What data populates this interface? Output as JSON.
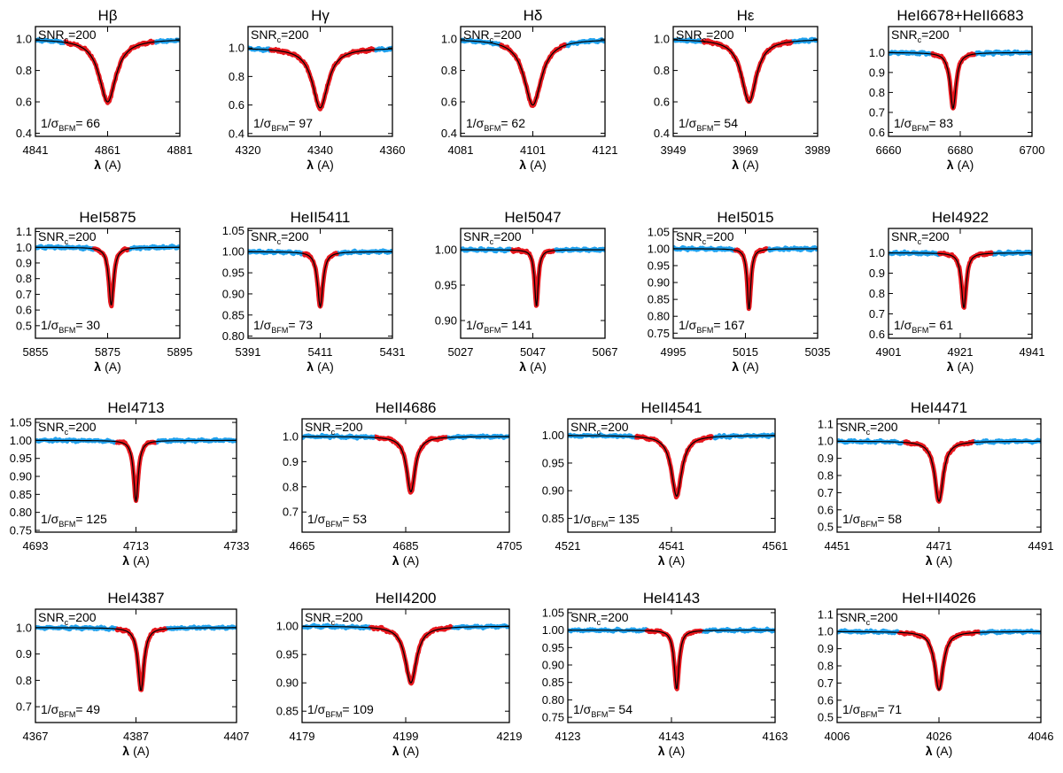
{
  "figure": {
    "snr_label": "SNR",
    "snr_sub": "c",
    "snr_value": "=200",
    "sigma_prefix": "1/σ",
    "sigma_sub": "BFM",
    "xlabel_lambda": "λ",
    "xlabel_unit": "(A)"
  },
  "colors": {
    "observed": "#1fa1ee",
    "fit_region": "#e8161c",
    "model": "#000000",
    "frame": "#000000"
  },
  "chart_data": [
    {
      "type": "line",
      "title": "Hβ",
      "center": 4861,
      "xlim": [
        4841,
        4881
      ],
      "xticks": [
        "4841",
        "4861",
        "4881"
      ],
      "ylim": [
        0.38,
        1.08
      ],
      "yticks": [
        0.4,
        0.6,
        0.8,
        1.0
      ],
      "ytick_labels": [
        "0.4",
        "0.6",
        "0.8",
        "1.0"
      ],
      "depth": 0.4,
      "width": 2.8,
      "inv_sigma_bfm": "66",
      "fit_range": [
        4849,
        4874
      ],
      "series": [
        {
          "name": "observed spectrum"
        },
        {
          "name": "fitted region"
        },
        {
          "name": "model"
        }
      ]
    },
    {
      "type": "line",
      "title": "Hγ",
      "center": 4340,
      "xlim": [
        4320,
        4360
      ],
      "xticks": [
        "4320",
        "4340",
        "4360"
      ],
      "ylim": [
        0.38,
        1.15
      ],
      "yticks": [
        0.4,
        0.6,
        0.8,
        1.0
      ],
      "ytick_labels": [
        "0.4",
        "0.6",
        "0.8",
        "1.0"
      ],
      "depth": 0.42,
      "width": 2.6,
      "inv_sigma_bfm": "97",
      "fit_range": [
        4326,
        4355
      ],
      "series": [
        {
          "name": "observed spectrum"
        },
        {
          "name": "fitted region"
        },
        {
          "name": "model"
        }
      ]
    },
    {
      "type": "line",
      "title": "Hδ",
      "center": 4101,
      "xlim": [
        4081,
        4121
      ],
      "xticks": [
        "4081",
        "4101",
        "4121"
      ],
      "ylim": [
        0.38,
        1.08
      ],
      "yticks": [
        0.4,
        0.6,
        0.8,
        1.0
      ],
      "ytick_labels": [
        "0.4",
        "0.6",
        "0.8",
        "1.0"
      ],
      "depth": 0.42,
      "width": 2.9,
      "inv_sigma_bfm": "62",
      "fit_range": [
        4092,
        4110
      ],
      "series": [
        {
          "name": "observed spectrum"
        },
        {
          "name": "fitted region"
        },
        {
          "name": "model"
        }
      ]
    },
    {
      "type": "line",
      "title": "Hε",
      "center": 3970,
      "xlim": [
        3949,
        3989
      ],
      "xticks": [
        "3949",
        "3969",
        "3989"
      ],
      "ylim": [
        0.38,
        1.08
      ],
      "yticks": [
        0.4,
        0.6,
        0.8,
        1.0
      ],
      "ytick_labels": [
        "0.4",
        "0.6",
        "0.8",
        "1.0"
      ],
      "depth": 0.4,
      "width": 2.5,
      "inv_sigma_bfm": "54",
      "fit_range": [
        3957,
        3982
      ],
      "series": [
        {
          "name": "observed spectrum"
        },
        {
          "name": "fitted region"
        },
        {
          "name": "model"
        }
      ]
    },
    {
      "type": "line",
      "title": "HeI6678+HeII6683",
      "center": 6678,
      "xlim": [
        6660,
        6700
      ],
      "xticks": [
        "6660",
        "6680",
        "6700"
      ],
      "ylim": [
        0.58,
        1.13
      ],
      "yticks": [
        0.6,
        0.7,
        0.8,
        0.9,
        1.0
      ],
      "ytick_labels": [
        "0.6",
        "0.7",
        "0.8",
        "0.9",
        "1.0"
      ],
      "depth": 0.28,
      "width": 1.0,
      "inv_sigma_bfm": "83",
      "fit_range": [
        6672,
        6684
      ],
      "series": [
        {
          "name": "observed spectrum"
        },
        {
          "name": "fitted region"
        },
        {
          "name": "model"
        }
      ]
    },
    {
      "type": "line",
      "title": "HeI5875",
      "center": 5876,
      "xlim": [
        5855,
        5895
      ],
      "xticks": [
        "5855",
        "5875",
        "5895"
      ],
      "ylim": [
        0.42,
        1.12
      ],
      "yticks": [
        0.5,
        0.6,
        0.7,
        0.8,
        0.9,
        1.0,
        1.1
      ],
      "ytick_labels": [
        "0.5",
        "0.6",
        "0.7",
        "0.8",
        "0.9",
        "1.0",
        "1.1"
      ],
      "depth": 0.37,
      "width": 0.8,
      "inv_sigma_bfm": "30",
      "fit_range": [
        5871,
        5881
      ],
      "series": [
        {
          "name": "observed spectrum"
        },
        {
          "name": "fitted region"
        },
        {
          "name": "model"
        }
      ]
    },
    {
      "type": "line",
      "title": "HeII5411",
      "center": 5411,
      "xlim": [
        5391,
        5431
      ],
      "xticks": [
        "5391",
        "5411",
        "5431"
      ],
      "ylim": [
        0.795,
        1.055
      ],
      "yticks": [
        0.8,
        0.85,
        0.9,
        0.95,
        1.0,
        1.05
      ],
      "ytick_labels": [
        "0.80",
        "0.85",
        "0.90",
        "0.95",
        "1.00",
        "1.05"
      ],
      "depth": 0.13,
      "width": 0.9,
      "inv_sigma_bfm": "73",
      "fit_range": [
        5406,
        5416
      ],
      "series": [
        {
          "name": "observed spectrum"
        },
        {
          "name": "fitted region"
        },
        {
          "name": "model"
        }
      ]
    },
    {
      "type": "line",
      "title": "HeI5047",
      "center": 5048,
      "xlim": [
        5027,
        5067
      ],
      "xticks": [
        "5027",
        "5047",
        "5067"
      ],
      "ylim": [
        0.875,
        1.03
      ],
      "yticks": [
        0.9,
        0.95,
        1.0
      ],
      "ytick_labels": [
        "0.90",
        "0.95",
        "1.00"
      ],
      "depth": 0.08,
      "width": 0.6,
      "inv_sigma_bfm": "141",
      "fit_range": [
        5041,
        5053
      ],
      "series": [
        {
          "name": "observed spectrum"
        },
        {
          "name": "fitted region"
        },
        {
          "name": "model"
        }
      ]
    },
    {
      "type": "line",
      "title": "HeI5015",
      "center": 5016,
      "xlim": [
        4995,
        5035
      ],
      "xticks": [
        "4995",
        "5015",
        "5035"
      ],
      "ylim": [
        0.735,
        1.06
      ],
      "yticks": [
        0.75,
        0.8,
        0.85,
        0.9,
        0.95,
        1.0,
        1.05
      ],
      "ytick_labels": [
        "0.75",
        "0.80",
        "0.85",
        "0.90",
        "0.95",
        "1.00",
        "1.05"
      ],
      "depth": 0.18,
      "width": 0.6,
      "inv_sigma_bfm": "167",
      "fit_range": [
        5012,
        5021
      ],
      "series": [
        {
          "name": "observed spectrum"
        },
        {
          "name": "fitted region"
        },
        {
          "name": "model"
        }
      ]
    },
    {
      "type": "line",
      "title": "HeI4922",
      "center": 4922,
      "xlim": [
        4901,
        4941
      ],
      "xticks": [
        "4901",
        "4921",
        "4941"
      ],
      "ylim": [
        0.58,
        1.12
      ],
      "yticks": [
        0.6,
        0.7,
        0.8,
        0.9,
        1.0
      ],
      "ytick_labels": [
        "0.6",
        "0.7",
        "0.8",
        "0.9",
        "1.0"
      ],
      "depth": 0.27,
      "width": 0.8,
      "inv_sigma_bfm": "61",
      "fit_range": [
        4915,
        4930
      ],
      "series": [
        {
          "name": "observed spectrum"
        },
        {
          "name": "fitted region"
        },
        {
          "name": "model"
        }
      ]
    },
    {
      "type": "line",
      "title": "HeI4713",
      "center": 4713,
      "xlim": [
        4693,
        4733
      ],
      "xticks": [
        "4693",
        "4713",
        "4733"
      ],
      "ylim": [
        0.745,
        1.06
      ],
      "yticks": [
        0.75,
        0.8,
        0.85,
        0.9,
        0.95,
        1.0,
        1.05
      ],
      "ytick_labels": [
        "0.75",
        "0.80",
        "0.85",
        "0.90",
        "0.95",
        "1.00",
        "1.05"
      ],
      "depth": 0.17,
      "width": 0.55,
      "inv_sigma_bfm": "125",
      "fit_range": [
        4709,
        4717
      ],
      "series": [
        {
          "name": "observed spectrum"
        },
        {
          "name": "fitted region"
        },
        {
          "name": "model"
        }
      ]
    },
    {
      "type": "line",
      "title": "HeII4686",
      "center": 4686,
      "xlim": [
        4665,
        4705
      ],
      "xticks": [
        "4665",
        "4685",
        "4705"
      ],
      "ylim": [
        0.62,
        1.07
      ],
      "yticks": [
        0.7,
        0.8,
        0.9,
        1.0
      ],
      "ytick_labels": [
        "0.7",
        "0.8",
        "0.9",
        "1.0"
      ],
      "depth": 0.22,
      "width": 1.0,
      "inv_sigma_bfm": "53",
      "fit_range": [
        4679,
        4693
      ],
      "series": [
        {
          "name": "observed spectrum"
        },
        {
          "name": "fitted region"
        },
        {
          "name": "model"
        }
      ]
    },
    {
      "type": "line",
      "title": "HeII4541",
      "center": 4542,
      "xlim": [
        4521,
        4561
      ],
      "xticks": [
        "4521",
        "4541",
        "4561"
      ],
      "ylim": [
        0.825,
        1.03
      ],
      "yticks": [
        0.85,
        0.9,
        0.95,
        1.0
      ],
      "ytick_labels": [
        "0.85",
        "0.90",
        "0.95",
        "1.00"
      ],
      "depth": 0.11,
      "width": 1.2,
      "inv_sigma_bfm": "135",
      "fit_range": [
        4534,
        4549
      ],
      "series": [
        {
          "name": "observed spectrum"
        },
        {
          "name": "fitted region"
        },
        {
          "name": "model"
        }
      ]
    },
    {
      "type": "line",
      "title": "HeI4471",
      "center": 4471,
      "xlim": [
        4451,
        4491
      ],
      "xticks": [
        "4451",
        "4471",
        "4491"
      ],
      "ylim": [
        0.47,
        1.13
      ],
      "yticks": [
        0.5,
        0.6,
        0.7,
        0.8,
        0.9,
        1.0,
        1.1
      ],
      "ytick_labels": [
        "0.5",
        "0.6",
        "0.7",
        "0.8",
        "0.9",
        "1.0",
        "1.1"
      ],
      "depth": 0.35,
      "width": 1.0,
      "inv_sigma_bfm": "58",
      "fit_range": [
        4464,
        4478
      ],
      "series": [
        {
          "name": "observed spectrum"
        },
        {
          "name": "fitted region"
        },
        {
          "name": "model"
        }
      ]
    },
    {
      "type": "line",
      "title": "HeI4387",
      "center": 4388,
      "xlim": [
        4367,
        4407
      ],
      "xticks": [
        "4367",
        "4387",
        "4407"
      ],
      "ylim": [
        0.64,
        1.07
      ],
      "yticks": [
        0.7,
        0.8,
        0.9,
        1.0
      ],
      "ytick_labels": [
        "0.7",
        "0.8",
        "0.9",
        "1.0"
      ],
      "depth": 0.24,
      "width": 0.7,
      "inv_sigma_bfm": "49",
      "fit_range": [
        4383,
        4393
      ],
      "series": [
        {
          "name": "observed spectrum"
        },
        {
          "name": "fitted region"
        },
        {
          "name": "model"
        }
      ]
    },
    {
      "type": "line",
      "title": "HeII4200",
      "center": 4200,
      "xlim": [
        4179,
        4219
      ],
      "xticks": [
        "4179",
        "4199",
        "4219"
      ],
      "ylim": [
        0.83,
        1.03
      ],
      "yticks": [
        0.85,
        0.9,
        0.95,
        1.0
      ],
      "ytick_labels": [
        "0.85",
        "0.90",
        "0.95",
        "1.00"
      ],
      "depth": 0.1,
      "width": 1.3,
      "inv_sigma_bfm": "109",
      "fit_range": [
        4192,
        4208
      ],
      "series": [
        {
          "name": "observed spectrum"
        },
        {
          "name": "fitted region"
        },
        {
          "name": "model"
        }
      ]
    },
    {
      "type": "line",
      "title": "HeI4143",
      "center": 4144,
      "xlim": [
        4123,
        4163
      ],
      "xticks": [
        "4123",
        "4143",
        "4163"
      ],
      "ylim": [
        0.735,
        1.06
      ],
      "yticks": [
        0.75,
        0.8,
        0.85,
        0.9,
        0.95,
        1.0,
        1.05
      ],
      "ytick_labels": [
        "0.75",
        "0.80",
        "0.85",
        "0.90",
        "0.95",
        "1.00",
        "1.05"
      ],
      "depth": 0.17,
      "width": 0.55,
      "inv_sigma_bfm": "54",
      "fit_range": [
        4138,
        4149
      ],
      "series": [
        {
          "name": "observed spectrum"
        },
        {
          "name": "fitted region"
        },
        {
          "name": "model"
        }
      ]
    },
    {
      "type": "line",
      "title": "HeI+II4026",
      "center": 4026,
      "xlim": [
        4006,
        4046
      ],
      "xticks": [
        "4006",
        "4026",
        "4046"
      ],
      "ylim": [
        0.47,
        1.13
      ],
      "yticks": [
        0.5,
        0.6,
        0.7,
        0.8,
        0.9,
        1.0,
        1.1
      ],
      "ytick_labels": [
        "0.5",
        "0.6",
        "0.7",
        "0.8",
        "0.9",
        "1.0",
        "1.1"
      ],
      "depth": 0.34,
      "width": 1.0,
      "inv_sigma_bfm": "71",
      "fit_range": [
        4018,
        4034
      ],
      "series": [
        {
          "name": "observed spectrum"
        },
        {
          "name": "fitted region"
        },
        {
          "name": "model"
        }
      ]
    }
  ]
}
